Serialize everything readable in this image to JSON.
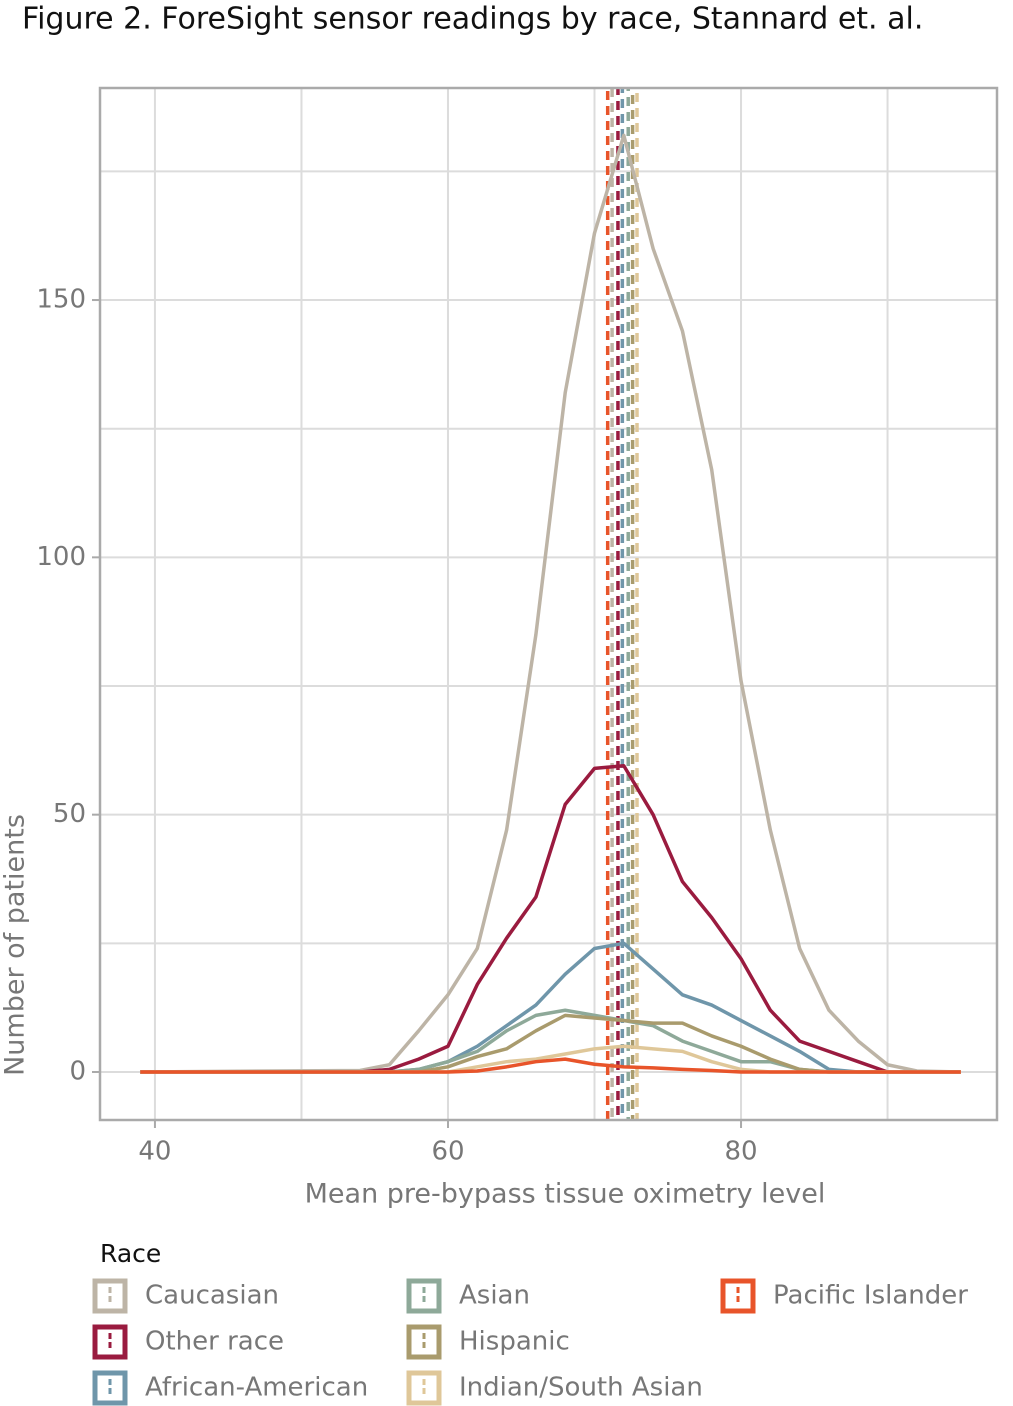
{
  "chart_data": {
    "type": "line",
    "title": "Figure 2. ForeSight sensor readings by race, Stannard et. al.",
    "xlabel": "Mean pre-bypass tissue oximetry level",
    "ylabel": "Number of patients",
    "legend_title": "Race",
    "x": [
      39,
      54,
      56,
      58,
      60,
      62,
      64,
      66,
      68,
      70,
      72,
      74,
      76,
      78,
      80,
      82,
      84,
      86,
      88,
      90,
      92,
      95
    ],
    "series": [
      {
        "name": "Caucasian",
        "color": "#bdb4a6",
        "mean": 71.2,
        "values": [
          0,
          0.3,
          1.4,
          8,
          15,
          24,
          47,
          85,
          132,
          163,
          182,
          160,
          144,
          117,
          76,
          47,
          24,
          12,
          6,
          1.4,
          0.2,
          0
        ]
      },
      {
        "name": "Other race",
        "color": "#9a1b3f",
        "mean": 71.6,
        "values": [
          0,
          0,
          0.5,
          2.5,
          5,
          17,
          26,
          34,
          52,
          59,
          59.5,
          50,
          37,
          30,
          22,
          12,
          6,
          4,
          2,
          0,
          0,
          0
        ]
      },
      {
        "name": "African-American",
        "color": "#6f96aa",
        "mean": 71.9,
        "values": [
          0,
          0,
          0,
          0.5,
          2,
          5,
          9,
          13,
          19,
          24,
          25,
          20,
          15,
          13,
          10,
          7,
          4,
          0.5,
          0,
          0,
          0,
          0
        ]
      },
      {
        "name": "Asian",
        "color": "#8ea999",
        "mean": 72.3,
        "values": [
          0,
          0,
          0,
          0.5,
          2,
          4,
          8,
          11,
          12,
          11,
          10,
          9,
          6,
          4,
          2,
          2,
          0.5,
          0,
          0,
          0,
          0,
          0
        ]
      },
      {
        "name": "Hispanic",
        "color": "#a99b6d",
        "mean": 72.6,
        "values": [
          0,
          0,
          0,
          0,
          1,
          3,
          4.5,
          8,
          11,
          10.5,
          10,
          9.5,
          9.5,
          7,
          5,
          2.5,
          0.5,
          0,
          0,
          0,
          0,
          0
        ]
      },
      {
        "name": "Indian/South Asian",
        "color": "#dfc799",
        "mean": 72.9,
        "values": [
          0,
          0,
          0,
          0,
          0,
          1,
          2,
          2.5,
          3.5,
          4.5,
          5,
          4.5,
          4,
          2,
          0.5,
          0,
          0,
          0,
          0,
          0,
          0,
          0
        ]
      },
      {
        "name": "Pacific Islander",
        "color": "#e8542a",
        "mean": 70.9,
        "values": [
          0,
          0,
          0,
          0,
          0,
          0.2,
          1,
          2,
          2.5,
          1.5,
          1,
          0.8,
          0.5,
          0.3,
          0,
          0,
          0,
          0,
          0,
          0,
          0,
          0
        ]
      }
    ],
    "xlim": [
      36.25,
      97.47
    ],
    "ylim": [
      -9.33,
      191.2
    ],
    "xticks": [
      40,
      60,
      80
    ],
    "yticks": [
      0,
      50,
      100,
      150
    ],
    "x_minor_grid": [
      50,
      70,
      90
    ],
    "y_minor_grid": [
      25,
      75,
      125,
      175
    ],
    "grid": true
  }
}
